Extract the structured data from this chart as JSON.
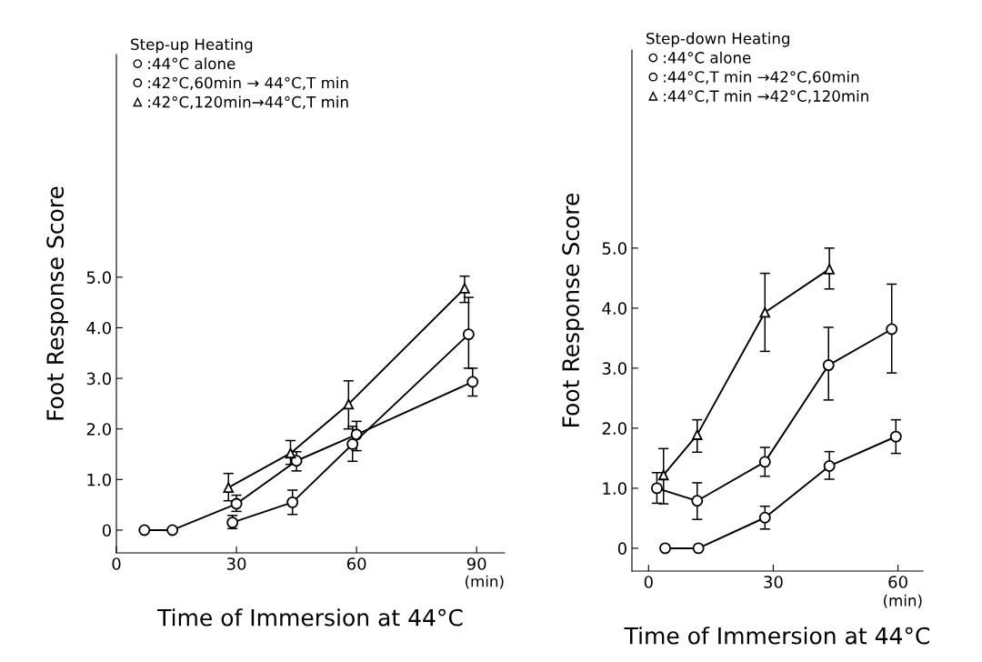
{
  "chart_data": [
    {
      "type": "line",
      "legend_title": "Step-up Heating",
      "xlabel": "Time of Immersion at 44°C",
      "ylabel": "Foot Response Score",
      "xlim": [
        0,
        97
      ],
      "ylim": [
        -0.45,
        9.4
      ],
      "xticks": [
        0,
        30,
        60,
        90
      ],
      "yticks": [
        0,
        {
          "value": 1,
          "label": "1.0"
        },
        {
          "value": 2,
          "label": "2.0"
        },
        {
          "value": 3,
          "label": "3.0"
        },
        {
          "value": 4,
          "label": "4.0"
        },
        {
          "value": 5,
          "label": "5.0"
        }
      ],
      "grid": false,
      "legend": "top left",
      "line_style": "solid",
      "annotations": [
        "(min)"
      ],
      "series": [
        {
          "name": ":44°C alone",
          "color": "#000000",
          "marker": "circle",
          "x": [
            7,
            14,
            30,
            45,
            60,
            89
          ],
          "values": [
            0,
            0,
            0.52,
            1.37,
            1.89,
            2.93
          ],
          "errors": [
            null,
            null,
            [
              0.37,
              0.69
            ],
            [
              1.17,
              1.55
            ],
            [
              1.57,
              2.15
            ],
            [
              2.65,
              3.2
            ]
          ]
        },
        {
          "name": ":42°C,60min → 44°C,T min",
          "color": "#000000",
          "marker": "circle",
          "x": [
            29,
            44,
            59,
            88
          ],
          "values": [
            0.15,
            0.55,
            1.7,
            3.87
          ],
          "errors": [
            [
              0.03,
              0.29
            ],
            [
              0.31,
              0.79
            ],
            [
              1.36,
              2.05
            ],
            [
              3.2,
              4.6
            ]
          ]
        },
        {
          "name": ":42°C,120min→44°C,T min",
          "color": "#000000",
          "marker": "triangle",
          "x": [
            28,
            43.5,
            58,
            87
          ],
          "values": [
            0.84,
            1.52,
            2.49,
            4.78
          ],
          "errors": [
            [
              0.58,
              1.12
            ],
            [
              1.3,
              1.77
            ],
            [
              2.0,
              2.95
            ],
            [
              4.5,
              5.02
            ]
          ]
        }
      ]
    },
    {
      "type": "line",
      "legend_title": "Step-down Heating",
      "xlabel": "Time of Immersion at 44°C",
      "ylabel": "Foot Response Score",
      "xlim": [
        -4,
        66
      ],
      "ylim": [
        -0.38,
        8.3
      ],
      "xticks": [
        0,
        30,
        60
      ],
      "yticks": [
        0,
        {
          "value": 1,
          "label": "1.0"
        },
        {
          "value": 2,
          "label": "2.0"
        },
        {
          "value": 3,
          "label": "3.0"
        },
        {
          "value": 4,
          "label": "4.0"
        },
        {
          "value": 5,
          "label": "5.0"
        }
      ],
      "grid": false,
      "legend": "top left",
      "line_style": "solid",
      "annotations": [
        "(min)"
      ],
      "series": [
        {
          "name": ":44°C alone",
          "color": "#000000",
          "marker": "circle",
          "x": [
            4,
            12,
            28,
            43.5,
            59.5
          ],
          "values": [
            0,
            0,
            0.51,
            1.37,
            1.86
          ],
          "errors": [
            null,
            null,
            [
              0.32,
              0.7
            ],
            [
              1.15,
              1.61
            ],
            [
              1.58,
              2.14
            ]
          ]
        },
        {
          "name": ":44°C,T min →42°C,60min",
          "color": "#000000",
          "marker": "circle",
          "x": [
            2,
            11.7,
            28,
            43.3,
            58.5
          ],
          "values": [
            1.0,
            0.79,
            1.44,
            3.05,
            3.65
          ],
          "errors": [
            [
              0.75,
              1.26
            ],
            [
              0.48,
              1.09
            ],
            [
              1.2,
              1.68
            ],
            [
              2.47,
              3.68
            ],
            [
              2.92,
              4.4
            ]
          ]
        },
        {
          "name": ":44°C,T min →42°C,120min",
          "color": "#000000",
          "marker": "triangle",
          "x": [
            3.6,
            11.7,
            28,
            43.5
          ],
          "values": [
            1.22,
            1.89,
            3.93,
            4.65
          ],
          "errors": [
            [
              0.74,
              1.66
            ],
            [
              1.6,
              2.14
            ],
            [
              3.28,
              4.58
            ],
            [
              4.32,
              5.0
            ]
          ]
        }
      ]
    }
  ]
}
